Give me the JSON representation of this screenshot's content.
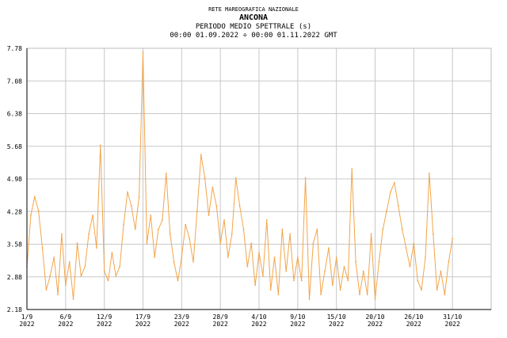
{
  "header": {
    "network": "RETE MAREOGRAFICA NAZIONALE",
    "station": "ANCONA",
    "parameter": "PERIODO MEDIO SPETTRALE (s)",
    "range": "00:00 01.09.2022 ÷ 00:00 01.11.2022 GMT"
  },
  "colors": {
    "series": "#f2a54a",
    "grid": "#c8c8c8",
    "axis": "#000000"
  },
  "chart_data": {
    "type": "line",
    "title": "PERIODO MEDIO SPETTRALE (s)",
    "xlabel": "",
    "ylabel": "",
    "xlim": [
      0,
      60
    ],
    "ylim": [
      2.18,
      7.78
    ],
    "grid": true,
    "legend": "none",
    "y_ticks": [
      2.18,
      2.88,
      3.58,
      4.28,
      4.98,
      5.68,
      6.38,
      7.08,
      7.78
    ],
    "y_tick_labels": [
      "2.18",
      "2.88",
      "3.58",
      "4.28",
      "4.98",
      "5.68",
      "6.38",
      "7.08",
      "7.78"
    ],
    "x_ticks": [
      {
        "day": 0,
        "label": "1/9",
        "year": "2022"
      },
      {
        "day": 5,
        "label": "6/9",
        "year": "2022"
      },
      {
        "day": 10,
        "label": "12/9",
        "year": "2022"
      },
      {
        "day": 15,
        "label": "17/9",
        "year": "2022"
      },
      {
        "day": 20,
        "label": "23/9",
        "year": "2022"
      },
      {
        "day": 25,
        "label": "28/9",
        "year": "2022"
      },
      {
        "day": 30,
        "label": "4/10",
        "year": "2022"
      },
      {
        "day": 35,
        "label": "9/10",
        "year": "2022"
      },
      {
        "day": 40,
        "label": "15/10",
        "year": "2022"
      },
      {
        "day": 45,
        "label": "20/10",
        "year": "2022"
      },
      {
        "day": 50,
        "label": "26/10",
        "year": "2022"
      },
      {
        "day": 55,
        "label": "31/10",
        "year": "2022"
      }
    ],
    "series": [
      {
        "color": "#f2a54a",
        "x": [
          0,
          0.5,
          1,
          1.5,
          2,
          2.5,
          3,
          3.5,
          4,
          4.5,
          5,
          5.5,
          6,
          6.5,
          7,
          7.5,
          8,
          8.5,
          9,
          9.5,
          10,
          10.5,
          11,
          11.5,
          12,
          12.5,
          13,
          13.5,
          14,
          14.5,
          15,
          15.5,
          16,
          16.5,
          17,
          17.5,
          18,
          18.5,
          19,
          19.5,
          20,
          20.5,
          21,
          21.5,
          22,
          22.5,
          23,
          23.5,
          24,
          24.5,
          25,
          25.5,
          26,
          26.5,
          27,
          27.5,
          28,
          28.5,
          29,
          29.5,
          30,
          30.5,
          31,
          31.5,
          32,
          32.5,
          33,
          33.5,
          34,
          34.5,
          35,
          35.5,
          36,
          36.5,
          37,
          37.5,
          38,
          38.5,
          39,
          39.5,
          40,
          40.5,
          41,
          41.5,
          42,
          42.5,
          43,
          43.5,
          44,
          44.5,
          45,
          45.5,
          46,
          46.5,
          47,
          47.5,
          48,
          48.5,
          49,
          49.5,
          50,
          50.5,
          51,
          51.5,
          52,
          52.5,
          53,
          53.5,
          54,
          54.5,
          55
        ],
        "y": [
          3.1,
          4.2,
          4.6,
          4.3,
          3.5,
          2.6,
          2.9,
          3.3,
          2.5,
          3.8,
          2.7,
          3.2,
          2.4,
          3.6,
          2.9,
          3.1,
          3.8,
          4.2,
          3.5,
          5.7,
          3.0,
          2.8,
          3.4,
          2.9,
          3.1,
          4.0,
          4.7,
          4.4,
          3.9,
          4.6,
          7.7,
          3.6,
          4.2,
          3.3,
          3.9,
          4.1,
          5.1,
          3.8,
          3.2,
          2.8,
          3.3,
          4.0,
          3.7,
          3.2,
          4.3,
          5.5,
          5.0,
          4.2,
          4.8,
          4.4,
          3.6,
          4.1,
          3.3,
          3.8,
          5.0,
          4.4,
          3.9,
          3.1,
          3.6,
          2.7,
          3.4,
          2.9,
          4.1,
          2.6,
          3.3,
          2.5,
          3.9,
          3.0,
          3.8,
          2.8,
          3.3,
          2.8,
          5.0,
          2.4,
          3.6,
          3.9,
          2.5,
          3.0,
          3.5,
          2.7,
          3.3,
          2.6,
          3.1,
          2.8,
          5.2,
          3.2,
          2.5,
          3.0,
          2.5,
          3.8,
          2.4,
          3.2,
          3.9,
          4.3,
          4.7,
          4.9,
          4.4,
          3.9,
          3.5,
          3.1,
          3.6,
          2.8,
          2.6,
          3.3,
          5.1,
          3.8,
          2.6,
          3.0,
          2.5,
          3.2,
          3.7
        ]
      }
    ]
  }
}
